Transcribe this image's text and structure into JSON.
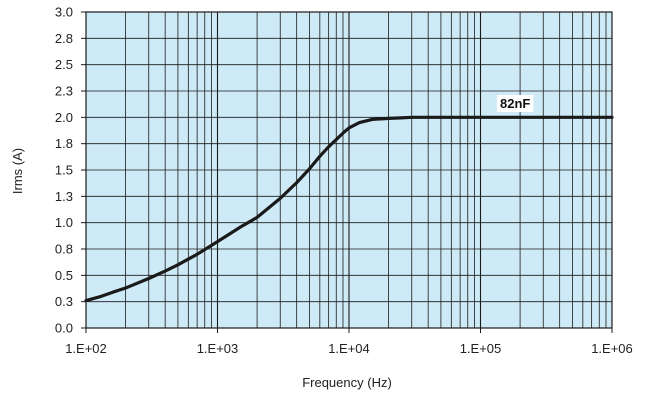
{
  "chart_data": {
    "type": "line",
    "title": "",
    "xlabel": "Frequency (Hz)",
    "ylabel": "Irms (A)",
    "xscale": "log",
    "xlim": [
      100,
      1000000
    ],
    "ylim": [
      0,
      3
    ],
    "xticks": [
      {
        "value": 100,
        "label": "1.E+02"
      },
      {
        "value": 1000,
        "label": "1.E+03"
      },
      {
        "value": 10000,
        "label": "1.E+04"
      },
      {
        "value": 100000,
        "label": "1.E+05"
      },
      {
        "value": 1000000,
        "label": "1.E+06"
      }
    ],
    "yticks": [
      {
        "value": 0.0,
        "label": "0.0"
      },
      {
        "value": 0.25,
        "label": "0.3"
      },
      {
        "value": 0.5,
        "label": "0.5"
      },
      {
        "value": 0.75,
        "label": "0.8"
      },
      {
        "value": 1.0,
        "label": "1.0"
      },
      {
        "value": 1.25,
        "label": "1.3"
      },
      {
        "value": 1.5,
        "label": "1.5"
      },
      {
        "value": 1.75,
        "label": "1.8"
      },
      {
        "value": 2.0,
        "label": "2.0"
      },
      {
        "value": 2.25,
        "label": "2.3"
      },
      {
        "value": 2.5,
        "label": "2.5"
      },
      {
        "value": 2.75,
        "label": "2.8"
      },
      {
        "value": 3.0,
        "label": "3.0"
      }
    ],
    "grid": true,
    "plot_background": "#cfeaf7",
    "line_color": "#1a1a1a",
    "series": [
      {
        "name": "82nF",
        "x": [
          100,
          130,
          160,
          200,
          300,
          400,
          500,
          700,
          1000,
          1500,
          2000,
          3000,
          4000,
          5000,
          6000,
          7000,
          8000,
          9000,
          10000,
          12000,
          15000,
          20000,
          25000,
          30000,
          50000,
          100000,
          500000,
          1000000
        ],
        "y": [
          0.26,
          0.3,
          0.34,
          0.38,
          0.47,
          0.54,
          0.6,
          0.7,
          0.82,
          0.96,
          1.05,
          1.23,
          1.38,
          1.51,
          1.63,
          1.72,
          1.79,
          1.85,
          1.9,
          1.95,
          1.98,
          1.99,
          1.995,
          2.0,
          2.0,
          2.0,
          2.0,
          2.0
        ]
      }
    ]
  }
}
